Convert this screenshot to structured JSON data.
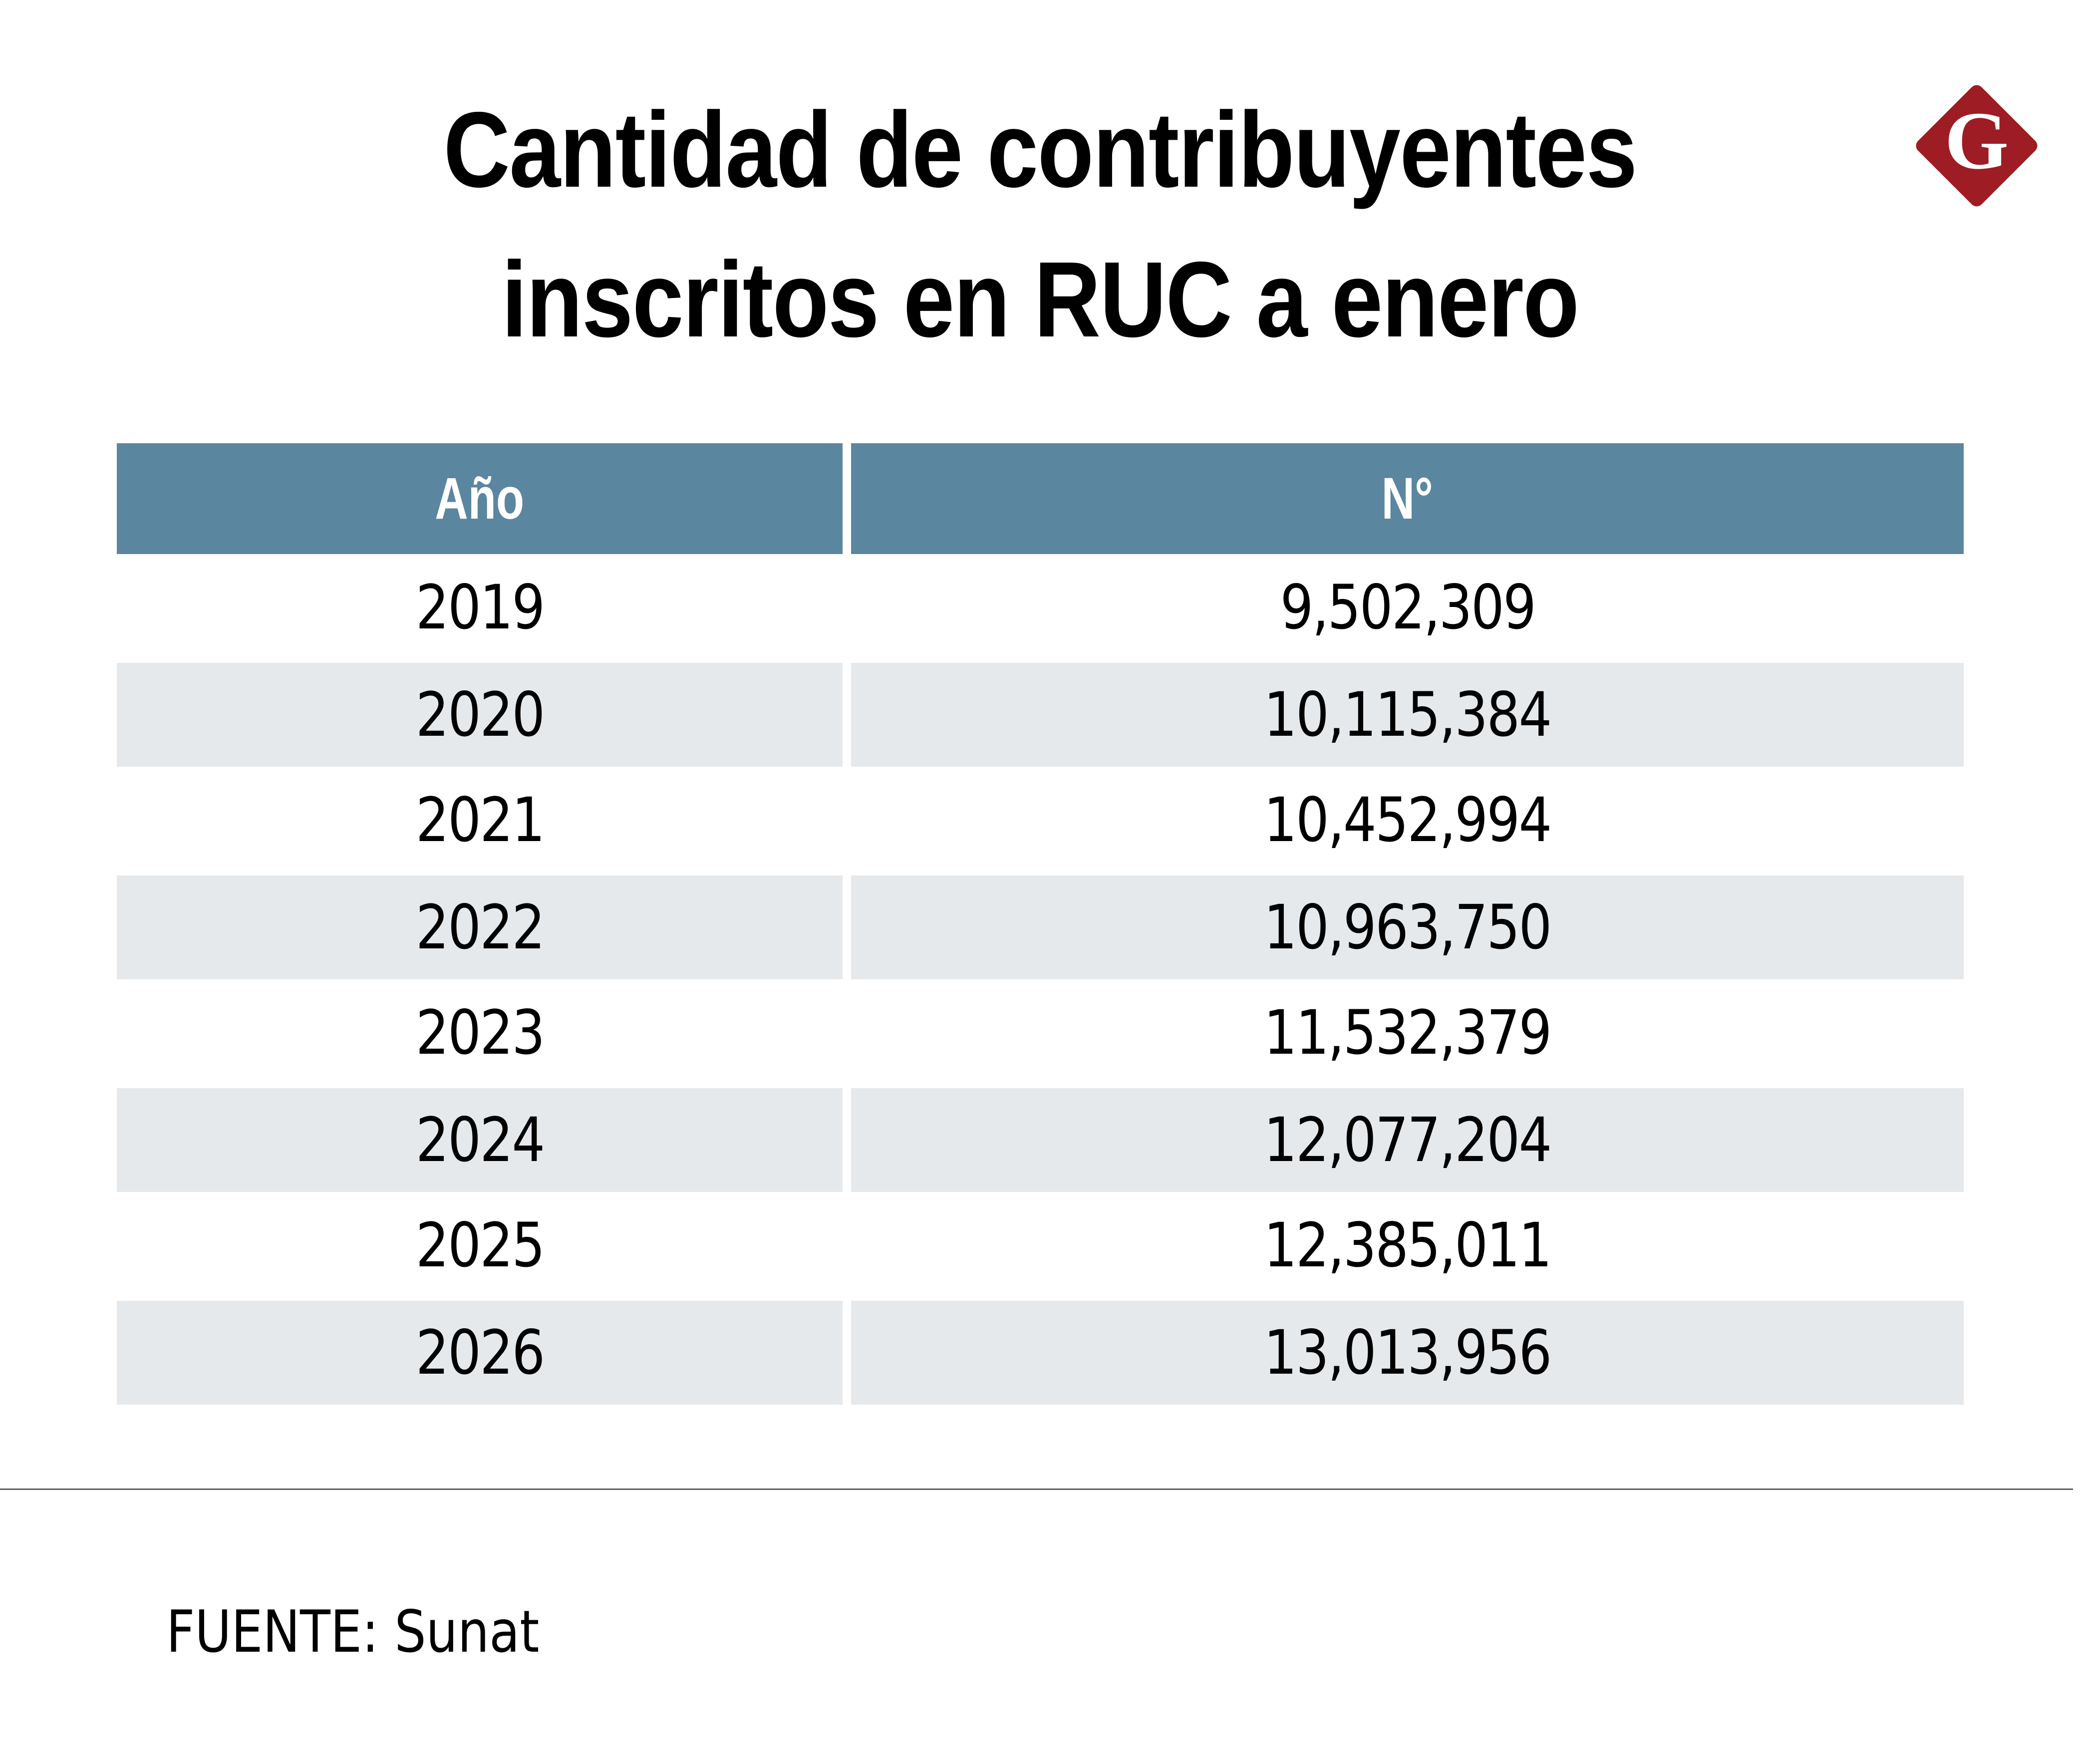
{
  "title": {
    "line1": "Cantidad de contribuyentes",
    "line2": "inscritos en RUC a enero"
  },
  "logo": {
    "letter": "G",
    "icon": "brand-diamond-g-logo",
    "color": "#9e1c24"
  },
  "colors": {
    "header_bg": "#5b869f",
    "header_text": "#ffffff",
    "stripe_bg": "#e6e9ec",
    "text": "#000000"
  },
  "table": {
    "headers": [
      "Año",
      "N°"
    ],
    "rows": [
      {
        "year": "2019",
        "value": "9,502,309"
      },
      {
        "year": "2020",
        "value": "10,115,384"
      },
      {
        "year": "2021",
        "value": "10,452,994"
      },
      {
        "year": "2022",
        "value": "10,963,750"
      },
      {
        "year": "2023",
        "value": "11,532,379"
      },
      {
        "year": "2024",
        "value": "12,077,204"
      },
      {
        "year": "2025",
        "value": "12,385,011"
      },
      {
        "year": "2026",
        "value": "13,013,956"
      }
    ]
  },
  "source": "FUENTE: Sunat",
  "chart_data": {
    "type": "table",
    "title": "Cantidad de contribuyentes inscritos en RUC a enero",
    "columns": [
      "Año",
      "N°"
    ],
    "categories": [
      "2019",
      "2020",
      "2021",
      "2022",
      "2023",
      "2024",
      "2025",
      "2026"
    ],
    "values": [
      9502309,
      10115384,
      10452994,
      10963750,
      11532379,
      12077204,
      12385011,
      13013956
    ],
    "source": "FUENTE: Sunat"
  }
}
